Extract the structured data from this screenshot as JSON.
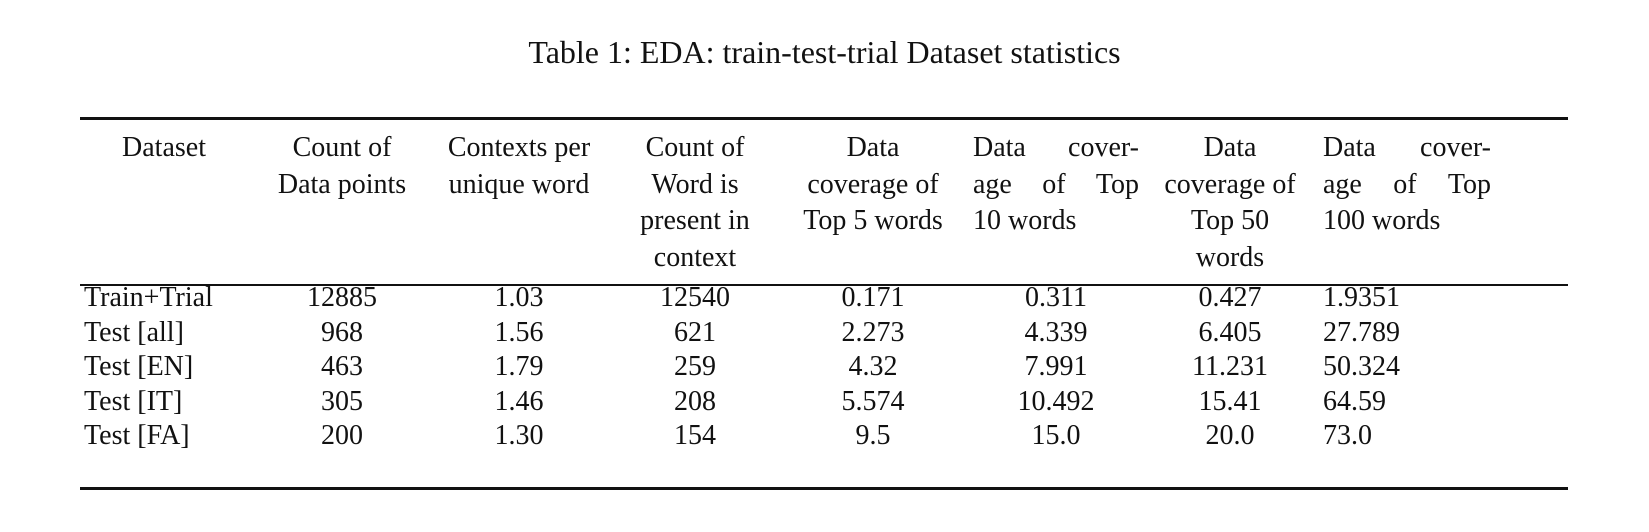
{
  "caption": "Table 1: EDA: train-test-trial Dataset statistics",
  "header": [
    {
      "lines": [
        "Dataset"
      ]
    },
    {
      "lines": [
        "Count of",
        "Data points"
      ]
    },
    {
      "lines": [
        "Contexts per",
        "unique word"
      ]
    },
    {
      "lines": [
        "Count of",
        "Word is",
        "present in",
        "context"
      ]
    },
    {
      "lines": [
        "Data",
        "coverage of",
        "Top 5 words"
      ]
    },
    {
      "lines": [
        "Data cover-",
        "age of Top",
        "10 words"
      ]
    },
    {
      "lines": [
        "Data",
        "coverage of",
        "Top 50",
        "words"
      ]
    },
    {
      "lines": [
        "Data cover-",
        "age of Top",
        "100 words"
      ]
    }
  ],
  "rows": [
    [
      "Train+Trial",
      "12885",
      "1.03",
      "12540",
      "0.171",
      "0.311",
      "0.427",
      "1.9351"
    ],
    [
      "Test [all]",
      "968",
      "1.56",
      "621",
      "2.273",
      "4.339",
      "6.405",
      "27.789"
    ],
    [
      "Test [EN]",
      "463",
      "1.79",
      "259",
      "4.32",
      "7.991",
      "11.231",
      "50.324"
    ],
    [
      "Test [IT]",
      "305",
      "1.46",
      "208",
      "5.574",
      "10.492",
      "15.41",
      "64.59"
    ],
    [
      "Test [FA]",
      "200",
      "1.30",
      "154",
      "9.5",
      "15.0",
      "20.0",
      "73.0"
    ]
  ]
}
